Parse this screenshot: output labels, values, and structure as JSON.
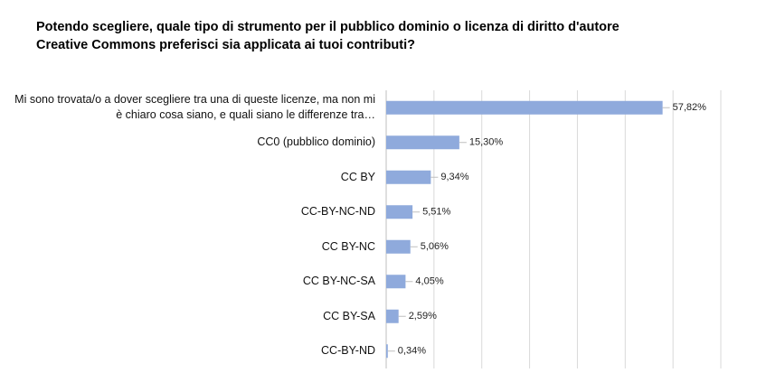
{
  "chart_data": {
    "type": "bar",
    "orientation": "horizontal",
    "title": "Potendo scegliere, quale tipo di strumento per il pubblico dominio o licenza di diritto d'autore Creative Commons preferisci sia applicata ai tuoi contributi?",
    "categories": [
      "Mi sono trovata/o a dover scegliere tra una di queste licenze, ma non mi è chiaro cosa siano, e quali siano le differenze tra…",
      "CC0 (pubblico dominio)",
      "CC BY",
      "CC-BY-NC-ND",
      "CC BY-NC",
      "CC BY-NC-SA",
      "CC BY-SA",
      "CC-BY-ND"
    ],
    "values": [
      57.82,
      15.3,
      9.34,
      5.51,
      5.06,
      4.05,
      2.59,
      0.34
    ],
    "value_labels": [
      "57,82%",
      "15,30%",
      "9,34%",
      "5,51%",
      "5,06%",
      "4,05%",
      "2,59%",
      "0,34%"
    ],
    "color": "#8faadc",
    "xlim": [
      0,
      70
    ],
    "xticks": [
      0,
      10,
      20,
      30,
      40,
      50,
      60,
      70
    ],
    "grid": true
  }
}
